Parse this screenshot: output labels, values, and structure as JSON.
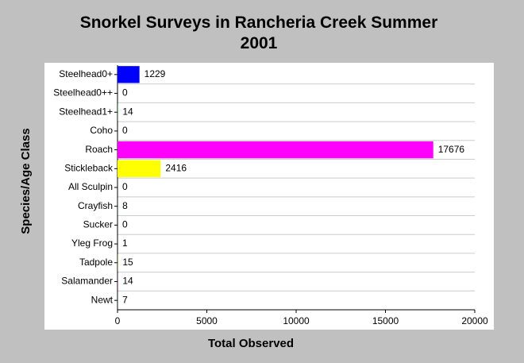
{
  "chart_data": {
    "type": "hbar",
    "title": "Snorkel Surveys in Rancheria Creek Summer 2001",
    "x_label": "Total Observed",
    "y_label": "Species/Age Class",
    "categories": [
      "Steelhead0+",
      "Steelhead0++",
      "Steelhead1+",
      "Coho",
      "Roach",
      "Stickleback",
      "All Sculpin",
      "Crayfish",
      "Sucker",
      "Yleg Frog",
      "Tadpole",
      "Salamander",
      "Newt"
    ],
    "values": [
      1229,
      0,
      14,
      0,
      17676,
      2416,
      0,
      8,
      0,
      1,
      15,
      14,
      7
    ],
    "colors": [
      "#0000ff",
      "#ff0000",
      "#00aa00",
      "#00ffff",
      "#ff00ff",
      "#ffff00",
      "#808080",
      "#006600",
      "#800000",
      "#000080",
      "#808000",
      "#800080",
      "#008080"
    ],
    "xlim": [
      0,
      20000
    ],
    "xticks": [
      0,
      5000,
      10000,
      15000,
      20000
    ]
  }
}
